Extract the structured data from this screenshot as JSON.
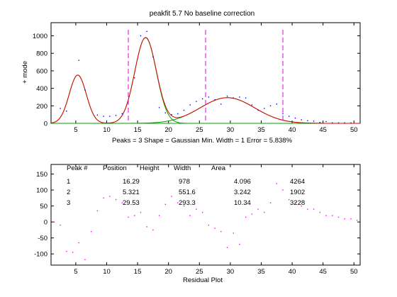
{
  "chart_data": [
    {
      "type": "line",
      "title": "peakfit 5.7  No baseline correction",
      "ylabel": "+ mode",
      "xlabel": "Peaks = 3    Shape = Gaussian    Min. Width = 1    Error = 5.838%",
      "xlim": [
        1,
        51
      ],
      "ylim": [
        0,
        1150
      ],
      "xticks": [
        5,
        10,
        15,
        20,
        25,
        30,
        35,
        40,
        45,
        50
      ],
      "yticks": [
        0,
        200,
        400,
        600,
        800,
        1000
      ],
      "data_x": [
        2.5,
        3.5,
        5.5,
        6.5,
        8.5,
        9.5,
        10.5,
        11.5,
        12.5,
        14.5,
        15.5,
        16.5,
        17.5,
        18.5,
        19.5,
        20.5,
        21.5,
        22.5,
        23.5,
        24.5,
        25.5,
        26.5,
        27.5,
        28.5,
        29.5,
        30.5,
        31.5,
        32.5,
        33.5,
        34.5,
        35.5,
        36.5,
        37.5,
        38.5,
        39.5,
        40.5,
        41.5,
        42.5,
        43.5,
        44.5,
        45.5,
        46.5,
        47.5,
        48.5,
        49.5
      ],
      "data_y": [
        170,
        140,
        720,
        380,
        95,
        80,
        80,
        90,
        110,
        520,
        1000,
        1050,
        760,
        180,
        120,
        100,
        110,
        150,
        210,
        250,
        280,
        300,
        270,
        220,
        310,
        290,
        300,
        290,
        210,
        150,
        170,
        200,
        220,
        110,
        80,
        60,
        40,
        30,
        25,
        10,
        20,
        5,
        5,
        5,
        5
      ],
      "peaks": [
        {
          "position": 16.29,
          "height": 978,
          "width": 4.096
        },
        {
          "position": 5.321,
          "height": 551.6,
          "width": 3.242
        },
        {
          "position": 29.53,
          "height": 293.3,
          "width": 10.34
        }
      ],
      "segment_markers_x": [
        13.5,
        26,
        38.5
      ],
      "colors": {
        "fit": "#e00000",
        "components": "#00a000",
        "data": "#0000ff",
        "markers": "#e000e0"
      }
    },
    {
      "type": "scatter",
      "xlabel": "Residual Plot",
      "xlim": [
        1,
        51
      ],
      "ylim": [
        -135,
        180
      ],
      "xticks": [
        5,
        10,
        15,
        20,
        25,
        30,
        35,
        40,
        45,
        50
      ],
      "yticks": [
        -100,
        -50,
        0,
        50,
        100,
        150
      ],
      "x": [
        1.5,
        2.5,
        3.5,
        4.5,
        5.5,
        6.5,
        7.5,
        8.5,
        9.5,
        10.5,
        11.5,
        12.5,
        13.5,
        14.5,
        15.5,
        16.5,
        17.5,
        18.5,
        19.5,
        20.5,
        21.5,
        22.5,
        23.5,
        24.5,
        25.5,
        26.5,
        27.5,
        28.5,
        29.5,
        30.5,
        31.5,
        32.5,
        33.5,
        34.5,
        35.5,
        36.5,
        37.5,
        38.5,
        39.5,
        40.5,
        41.5,
        42.5,
        43.5,
        44.5,
        45.5,
        46.5,
        47.5,
        48.5,
        49.5,
        50.5
      ],
      "y": [
        0,
        -10,
        -92,
        -95,
        -65,
        -118,
        -30,
        35,
        75,
        80,
        70,
        60,
        15,
        20,
        30,
        -15,
        -25,
        20,
        55,
        80,
        60,
        50,
        20,
        40,
        30,
        -10,
        -20,
        -30,
        -80,
        -35,
        -70,
        15,
        25,
        40,
        30,
        60,
        120,
        100,
        70,
        60,
        50,
        40,
        40,
        30,
        20,
        20,
        15,
        10,
        10,
        5
      ],
      "color": "#ff00ff"
    }
  ],
  "table": {
    "headers": [
      "Peak #",
      "Position",
      "Height",
      "Width",
      "Area"
    ],
    "rows": [
      [
        "1",
        "16.29",
        "978",
        "4.096",
        "4264"
      ],
      [
        "2",
        "5.321",
        "551.6",
        "3.242",
        "1902"
      ],
      [
        "3",
        "29.53",
        "293.3",
        "10.34",
        "3228"
      ]
    ]
  }
}
